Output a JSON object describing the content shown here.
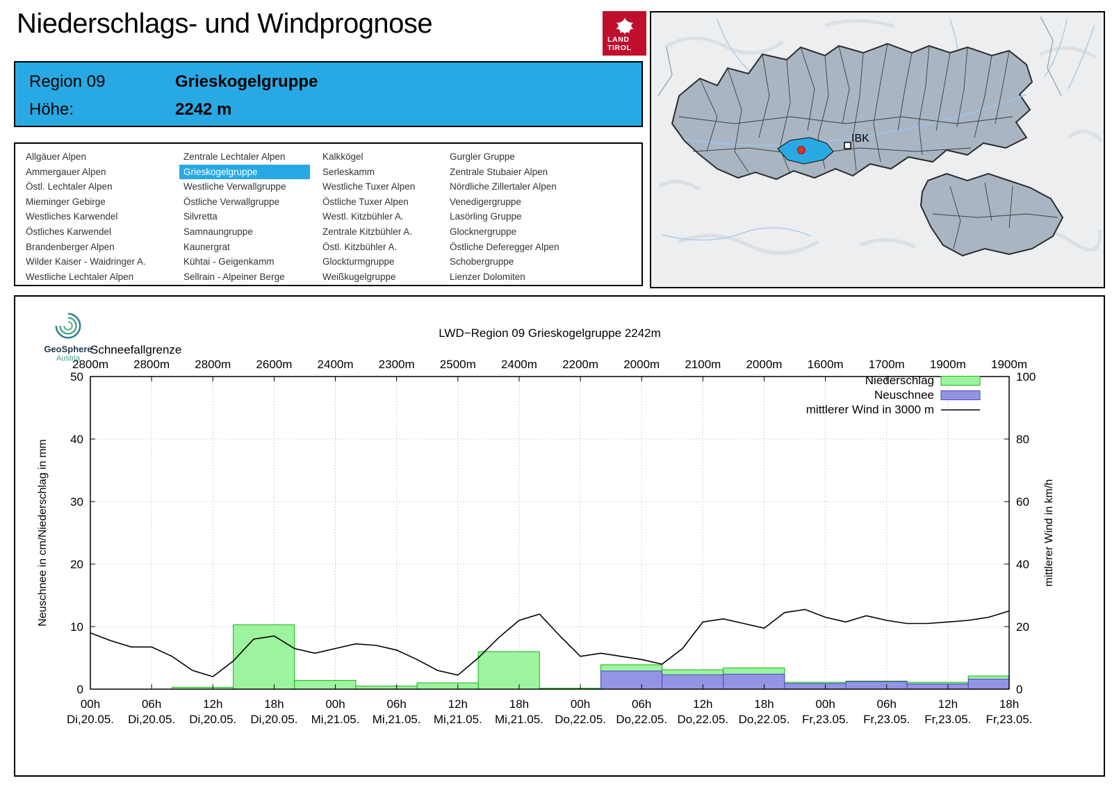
{
  "page": {
    "title": "Niederschlags- und Windprognose"
  },
  "brand": {
    "land_logo_line1": "LAND",
    "land_logo_line2": "TIROL"
  },
  "region_header": {
    "region_label": "Region 09",
    "region_name": "Grieskogelgruppe",
    "altitude_label": "Höhe:",
    "altitude_value": "2242 m"
  },
  "region_list": {
    "selected": "Grieskogelgruppe",
    "columns": [
      [
        "Allgäuer Alpen",
        "Ammergauer Alpen",
        "Östl. Lechtaler Alpen",
        "Mieminger Gebirge",
        "Westliches Karwendel",
        "Östliches Karwendel",
        "Brandenberger Alpen",
        "Wilder Kaiser - Waidringer A.",
        "Westliche Lechtaler Alpen"
      ],
      [
        "Zentrale Lechtaler Alpen",
        "Grieskogelgruppe",
        "Westliche Verwallgruppe",
        "Östliche Verwallgruppe",
        "Silvretta",
        "Samnaungruppe",
        "Kaunergrat",
        "Kühtai - Geigenkamm",
        "Sellrain - Alpeiner Berge"
      ],
      [
        "Kalkkögel",
        "Serleskamm",
        "Westliche Tuxer Alpen",
        "Östliche Tuxer Alpen",
        "Westl. Kitzbühler A.",
        "Zentrale Kitzbühler A.",
        "Östl. Kitzbühler A.",
        "Glockturmgruppe",
        "Weißkugelgruppe"
      ],
      [
        "Gurgler Gruppe",
        "Zentrale Stubaier Alpen",
        "Nördliche Zillertaler Alpen",
        "Venedigergruppe",
        "Lasörling Gruppe",
        "Glocknergruppe",
        "Östliche Deferegger Alpen",
        "Schobergruppe",
        "Lienzer Dolomiten"
      ]
    ]
  },
  "map": {
    "city_label": "IBK"
  },
  "geosphere": {
    "name": "GeoSphere",
    "country": "Austria"
  },
  "chart_data": {
    "type": "bar+line",
    "title": "LWD−Region 09 Grieskogelgruppe 2242m",
    "snowline_label": "Schneefallgrenze",
    "snowline_values_m": [
      "2800m",
      "2800m",
      "2800m",
      "2600m",
      "2400m",
      "2300m",
      "2500m",
      "2400m",
      "2200m",
      "2000m",
      "2100m",
      "2000m",
      "1600m",
      "1700m",
      "1900m",
      "1900m"
    ],
    "ylabel_left": "Neuschnee in cm/Niederschlag in mm",
    "ylabel_right": "mittlerer Wind in km/h",
    "ylim_left": [
      0,
      50
    ],
    "ytick_left": 10,
    "ylim_right": [
      0,
      100
    ],
    "ytick_right": 20,
    "x_total_hours": 90,
    "x_tick_hours": 6,
    "x_ticks": [
      {
        "h": "00h",
        "d": "Di,20.05."
      },
      {
        "h": "06h",
        "d": "Di,20.05."
      },
      {
        "h": "12h",
        "d": "Di,20.05."
      },
      {
        "h": "18h",
        "d": "Di,20.05."
      },
      {
        "h": "00h",
        "d": "Mi,21.05."
      },
      {
        "h": "06h",
        "d": "Mi,21.05."
      },
      {
        "h": "12h",
        "d": "Mi,21.05."
      },
      {
        "h": "18h",
        "d": "Mi,21.05."
      },
      {
        "h": "00h",
        "d": "Do,22.05."
      },
      {
        "h": "06h",
        "d": "Do,22.05."
      },
      {
        "h": "12h",
        "d": "Do,22.05."
      },
      {
        "h": "18h",
        "d": "Do,22.05."
      },
      {
        "h": "00h",
        "d": "Fr,23.05."
      },
      {
        "h": "06h",
        "d": "Fr,23.05."
      },
      {
        "h": "12h",
        "d": "Fr,23.05."
      },
      {
        "h": "18h",
        "d": "Fr,23.05."
      }
    ],
    "legend": [
      {
        "label": "Niederschlag",
        "type": "bar",
        "fill": "#9ef39e",
        "border": "#15b415"
      },
      {
        "label": "Neuschnee",
        "type": "bar",
        "fill": "#9394e4",
        "border": "#4848c0"
      },
      {
        "label": "mittlerer Wind in 3000 m",
        "type": "line",
        "color": "#000000"
      }
    ],
    "bar_width_h": 6,
    "precipitation_mm": [
      {
        "t": 8,
        "v": 0.3
      },
      {
        "t": 14,
        "v": 10.3
      },
      {
        "t": 20,
        "v": 1.4
      },
      {
        "t": 26,
        "v": 0.5
      },
      {
        "t": 32,
        "v": 1.0
      },
      {
        "t": 38,
        "v": 6.0
      },
      {
        "t": 44,
        "v": 0.15
      },
      {
        "t": 50,
        "v": 3.9
      },
      {
        "t": 56,
        "v": 3.1
      },
      {
        "t": 62,
        "v": 3.4
      },
      {
        "t": 68,
        "v": 1.1
      },
      {
        "t": 74,
        "v": 1.3
      },
      {
        "t": 80,
        "v": 1.1
      },
      {
        "t": 86,
        "v": 2.1
      }
    ],
    "new_snow_cm": [
      {
        "t": 50,
        "v": 2.9
      },
      {
        "t": 56,
        "v": 2.3
      },
      {
        "t": 62,
        "v": 2.4
      },
      {
        "t": 68,
        "v": 0.9
      },
      {
        "t": 74,
        "v": 1.2
      },
      {
        "t": 80,
        "v": 0.85
      },
      {
        "t": 86,
        "v": 1.6
      }
    ],
    "wind_kmh": {
      "t_start": 0,
      "t_step": 2,
      "values": [
        18,
        15.5,
        13.5,
        13.5,
        10.5,
        6,
        4,
        9,
        16,
        17,
        13,
        11.5,
        13,
        14.5,
        14,
        12.5,
        9.5,
        6,
        4.5,
        10,
        16.5,
        22,
        24,
        17,
        10.5,
        11.5,
        10.5,
        9.5,
        8,
        13,
        21.5,
        22.5,
        21,
        19.5,
        24.5,
        25.5,
        23,
        21.5,
        23.5,
        22,
        21,
        21,
        21.5,
        22,
        23,
        25
      ]
    }
  }
}
